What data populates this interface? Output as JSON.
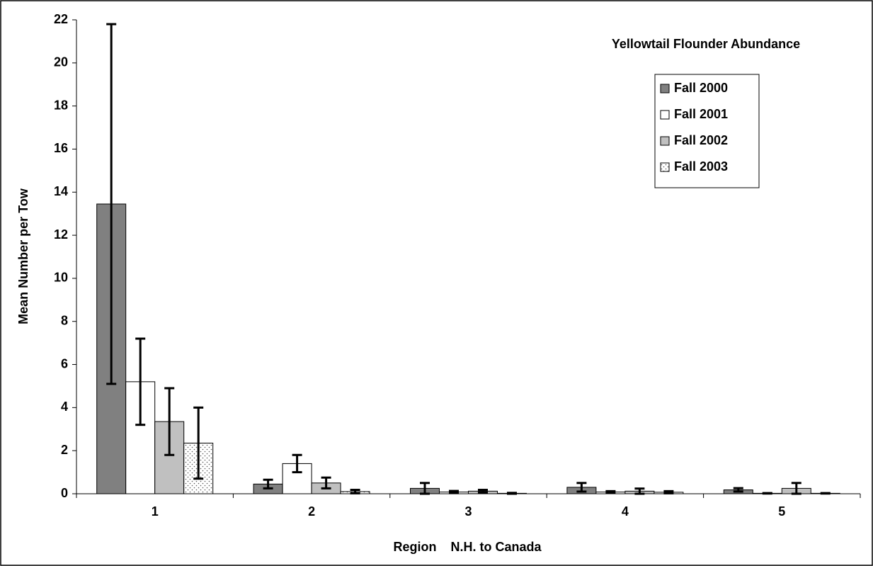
{
  "chart_data": {
    "type": "bar",
    "title": "Yellowtail Flounder Abundance",
    "x_label": "Region    N.H. to Canada",
    "y_label": "Mean Number per Tow",
    "categories": [
      "1",
      "2",
      "3",
      "4",
      "5"
    ],
    "series": [
      {
        "name": "Fall 2000",
        "color": "#808080",
        "values": [
          13.45,
          0.45,
          0.25,
          0.3,
          0.18
        ],
        "errors": [
          8.35,
          0.2,
          0.25,
          0.2,
          0.08
        ]
      },
      {
        "name": "Fall 2001",
        "color": "#ffffff",
        "values": [
          5.2,
          1.4,
          0.08,
          0.08,
          0.02
        ],
        "errors": [
          2.0,
          0.4,
          0.05,
          0.04,
          0.01
        ]
      },
      {
        "name": "Fall 2002",
        "color": "#c0c0c0",
        "values": [
          3.35,
          0.5,
          0.12,
          0.12,
          0.25
        ],
        "errors": [
          1.55,
          0.25,
          0.06,
          0.12,
          0.25
        ]
      },
      {
        "name": "Fall 2003",
        "color": "#ffffff",
        "pattern": "dots",
        "values": [
          2.35,
          0.1,
          0.02,
          0.07,
          0.02
        ],
        "errors": [
          1.65,
          0.08,
          0.02,
          0.05,
          0.01
        ]
      }
    ],
    "ylim": [
      0,
      22
    ],
    "yticks": [
      0,
      2,
      4,
      6,
      8,
      10,
      12,
      14,
      16,
      18,
      20,
      22
    ],
    "legend": "upper right",
    "grid": false
  }
}
